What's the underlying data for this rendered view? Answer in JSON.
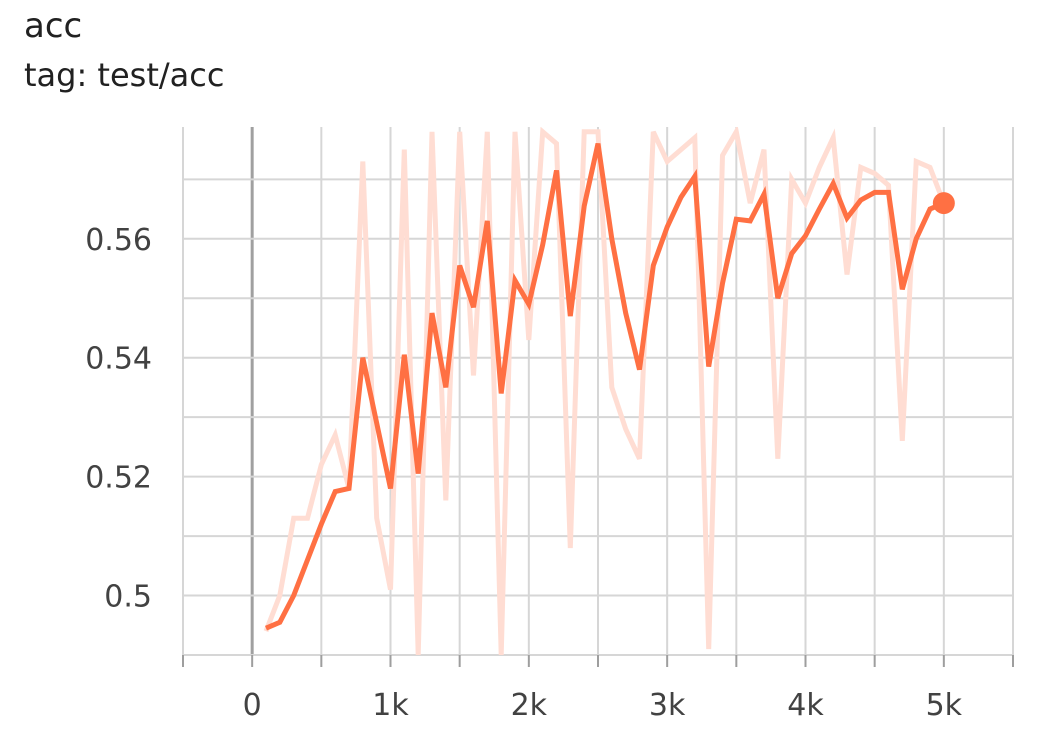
{
  "header": {
    "title": "acc",
    "subtitle": "tag: test/acc"
  },
  "colors": {
    "smoothed": "#ff7043",
    "raw": "#ffddd3",
    "grid": "#d6d6d6",
    "zero_axis": "#a0a0a0",
    "tick_text": "#424242"
  },
  "chart_data": {
    "type": "line",
    "title": "acc",
    "subtitle": "tag: test/acc",
    "xlabel": "",
    "ylabel": "",
    "xlim": [
      -500,
      5500
    ],
    "ylim": [
      0.49,
      0.5788
    ],
    "x_ticks": [
      0,
      1000,
      2000,
      3000,
      4000,
      5000
    ],
    "x_tick_labels": [
      "0",
      "1k",
      "2k",
      "3k",
      "4k",
      "5k"
    ],
    "y_ticks": [
      0.5,
      0.52,
      0.54,
      0.56
    ],
    "y_tick_labels": [
      "0.5",
      "0.52",
      "0.54",
      "0.56"
    ],
    "grid": true,
    "legend": "none",
    "series": [
      {
        "style": "raw",
        "x": [
          100,
          200,
          300,
          400,
          500,
          600,
          700,
          800,
          900,
          1000,
          1100,
          1200,
          1300,
          1400,
          1500,
          1600,
          1700,
          1800,
          1900,
          2000,
          2100,
          2200,
          2300,
          2400,
          2500,
          2600,
          2700,
          2800,
          2900,
          3000,
          3100,
          3200,
          3300,
          3400,
          3500,
          3600,
          3700,
          3800,
          3900,
          4000,
          4100,
          4200,
          4300,
          4400,
          4500,
          4600,
          4700,
          4800,
          4900,
          5000
        ],
        "y": [
          0.494,
          0.5,
          0.513,
          0.513,
          0.522,
          0.527,
          0.518,
          0.573,
          0.513,
          0.501,
          0.575,
          0.49,
          0.578,
          0.516,
          0.578,
          0.537,
          0.578,
          0.49,
          0.578,
          0.543,
          0.578,
          0.576,
          0.508,
          0.578,
          0.578,
          0.535,
          0.528,
          0.523,
          0.578,
          0.573,
          0.575,
          0.577,
          0.491,
          0.574,
          0.578,
          0.566,
          0.575,
          0.523,
          0.57,
          0.566,
          0.572,
          0.577,
          0.554,
          0.572,
          0.571,
          0.569,
          0.526,
          0.573,
          0.572,
          0.566
        ]
      },
      {
        "style": "smoothed",
        "x": [
          100,
          200,
          300,
          400,
          500,
          600,
          700,
          800,
          900,
          1000,
          1100,
          1200,
          1300,
          1400,
          1500,
          1600,
          1700,
          1800,
          1900,
          2000,
          2100,
          2200,
          2300,
          2400,
          2500,
          2600,
          2700,
          2800,
          2900,
          3000,
          3100,
          3200,
          3300,
          3400,
          3500,
          3600,
          3700,
          3800,
          3900,
          4000,
          4100,
          4200,
          4300,
          4400,
          4500,
          4600,
          4700,
          4800,
          4900,
          5000
        ],
        "y": [
          0.4945,
          0.4955,
          0.5,
          0.506,
          0.512,
          0.5175,
          0.518,
          0.54,
          0.529,
          0.518,
          0.5405,
          0.5205,
          0.5475,
          0.535,
          0.5555,
          0.5485,
          0.563,
          0.534,
          0.553,
          0.549,
          0.559,
          0.5715,
          0.547,
          0.5655,
          0.576,
          0.56,
          0.5475,
          0.538,
          0.5555,
          0.562,
          0.567,
          0.5705,
          0.5385,
          0.5525,
          0.5633,
          0.563,
          0.5675,
          0.55,
          0.5575,
          0.5605,
          0.565,
          0.5693,
          0.5635,
          0.5665,
          0.5678,
          0.5678,
          0.5515,
          0.56,
          0.565,
          0.566
        ]
      }
    ]
  }
}
